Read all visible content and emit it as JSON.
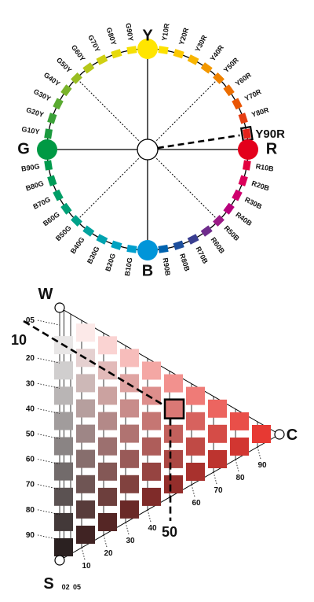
{
  "circle": {
    "primaries": [
      {
        "name": "Y",
        "color": "#ffe500"
      },
      {
        "name": "R",
        "color": "#e3001b"
      },
      {
        "name": "B",
        "color": "#0095d9"
      },
      {
        "name": "G",
        "color": "#009944"
      }
    ],
    "hues": [
      {
        "label": "Y10R",
        "color": "#fde100"
      },
      {
        "label": "Y20R",
        "color": "#fcc800"
      },
      {
        "label": "Y30R",
        "color": "#f8b500"
      },
      {
        "label": "Y40R",
        "color": "#f39800"
      },
      {
        "label": "Y50R",
        "color": "#ef8200"
      },
      {
        "label": "Y60R",
        "color": "#ec6d00"
      },
      {
        "label": "Y70R",
        "color": "#e95504"
      },
      {
        "label": "Y80R",
        "color": "#e63e12"
      },
      {
        "label": "Y90R",
        "color": "#e4231c"
      },
      {
        "label": "R10B",
        "color": "#e2003f"
      },
      {
        "label": "R20B",
        "color": "#db0059"
      },
      {
        "label": "R30B",
        "color": "#cf006e"
      },
      {
        "label": "R40B",
        "color": "#b8007c"
      },
      {
        "label": "R50B",
        "color": "#9b1a86"
      },
      {
        "label": "R60B",
        "color": "#6f2c8c"
      },
      {
        "label": "R70B",
        "color": "#3a3f91"
      },
      {
        "label": "R80B",
        "color": "#1d4f9c"
      },
      {
        "label": "R90B",
        "color": "#0063af"
      },
      {
        "label": "B10G",
        "color": "#009fcd"
      },
      {
        "label": "B20G",
        "color": "#00a2c0"
      },
      {
        "label": "B30G",
        "color": "#00a3b0"
      },
      {
        "label": "B40G",
        "color": "#00a39e"
      },
      {
        "label": "B50G",
        "color": "#00a28a"
      },
      {
        "label": "B60G",
        "color": "#00a077"
      },
      {
        "label": "B70G",
        "color": "#009e66"
      },
      {
        "label": "B80G",
        "color": "#009c58"
      },
      {
        "label": "B90G",
        "color": "#009a4c"
      },
      {
        "label": "G10Y",
        "color": "#1b9a3e"
      },
      {
        "label": "G20Y",
        "color": "#3aa138"
      },
      {
        "label": "G30Y",
        "color": "#5aaa31"
      },
      {
        "label": "G40Y",
        "color": "#7ab42a"
      },
      {
        "label": "G50Y",
        "color": "#98bd22"
      },
      {
        "label": "G60Y",
        "color": "#b5c71a"
      },
      {
        "label": "G70Y",
        "color": "#d0d012"
      },
      {
        "label": "G80Y",
        "color": "#e6d90a"
      },
      {
        "label": "G90Y",
        "color": "#f5df04"
      }
    ],
    "selected_hue": "Y90R"
  },
  "triangle": {
    "vertices": {
      "white": "W",
      "black": "S",
      "chromatic": "C"
    },
    "blackness_ticks": [
      "05",
      "10",
      "20",
      "30",
      "40",
      "50",
      "60",
      "70",
      "80",
      "90"
    ],
    "chromaticness_ticks": [
      "02",
      "05",
      "10",
      "20",
      "30",
      "40",
      "50",
      "60",
      "70",
      "80",
      "90"
    ],
    "selected_blackness": "10",
    "selected_chromaticness": "50",
    "hue_color": "#e4231c"
  }
}
